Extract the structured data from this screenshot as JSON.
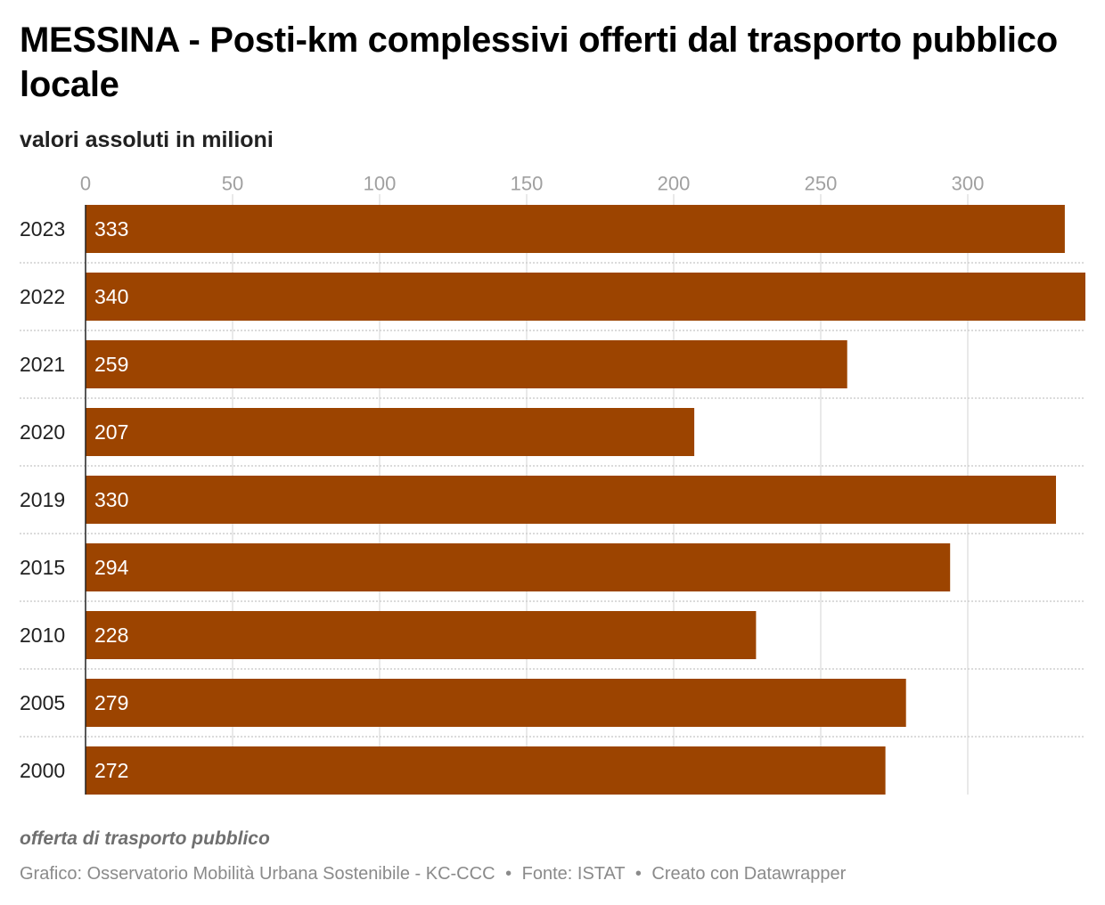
{
  "chart_data": {
    "type": "bar",
    "orientation": "horizontal",
    "title": "MESSINA - Posti-km complessivi offerti dal trasporto pubblico locale",
    "subtitle": "valori assoluti in milioni",
    "categories": [
      "2023",
      "2022",
      "2021",
      "2020",
      "2019",
      "2015",
      "2010",
      "2005",
      "2000"
    ],
    "values": [
      333,
      340,
      259,
      207,
      330,
      294,
      228,
      279,
      272
    ],
    "value_labels": [
      "333",
      "340",
      "259",
      "207",
      "330",
      "294",
      "228",
      "279",
      "272"
    ],
    "xlim": [
      0,
      340
    ],
    "xticks": [
      0,
      50,
      100,
      150,
      200,
      250,
      300
    ],
    "xtick_labels": [
      "0",
      "50",
      "100",
      "150",
      "200",
      "250",
      "300"
    ],
    "axis_position": "top",
    "grid": true,
    "bar_color": "#9c4400"
  },
  "note": "offerta di trasporto pubblico",
  "footer": {
    "credit": "Grafico: Osservatorio Mobilità Urbana Sostenibile - KC-CCC",
    "source": "Fonte: ISTAT",
    "tool": "Creato con Datawrapper",
    "separator": "•"
  }
}
